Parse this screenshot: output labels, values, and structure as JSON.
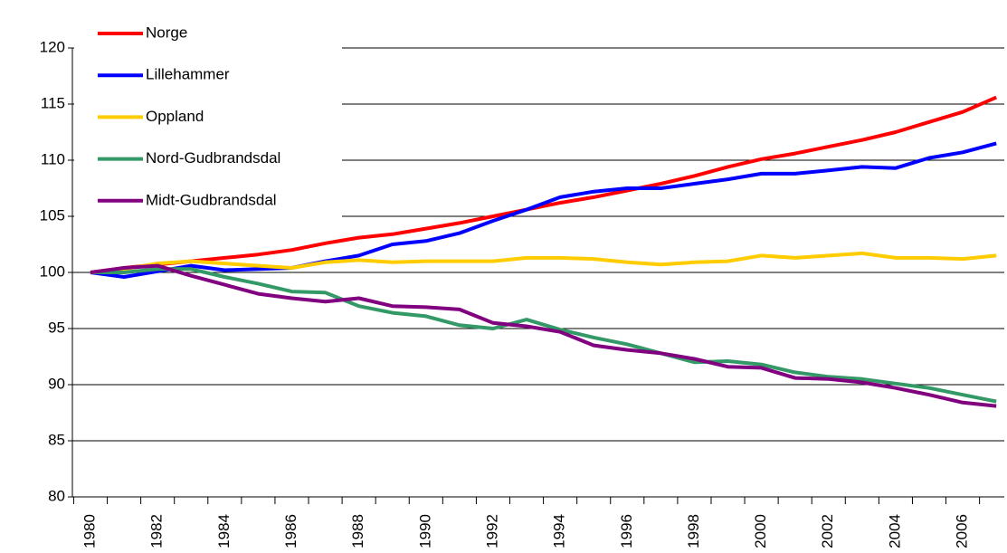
{
  "chart_data": {
    "type": "line",
    "categories": [
      "1980",
      null,
      "1982",
      null,
      "1984",
      null,
      "1986",
      null,
      "1988",
      null,
      "1990",
      null,
      "1992",
      null,
      "1994",
      null,
      "1996",
      null,
      "1998",
      null,
      "2000",
      null,
      "2002",
      null,
      "2004",
      null,
      "2006",
      null
    ],
    "ylim": [
      80,
      120
    ],
    "yticks": [
      80,
      85,
      90,
      95,
      100,
      105,
      110,
      115,
      120
    ],
    "grid": true,
    "legend": "upper left",
    "series": [
      {
        "name": "Norge",
        "color": "#ff0000",
        "values": [
          100,
          100.4,
          100.7,
          101.0,
          101.3,
          101.6,
          102.0,
          102.6,
          103.1,
          103.4,
          103.9,
          104.4,
          105.0,
          105.6,
          106.2,
          106.7,
          107.3,
          107.9,
          108.6,
          109.4,
          110.1,
          110.6,
          111.2,
          111.8,
          112.5,
          113.4,
          114.3,
          115.6
        ]
      },
      {
        "name": "Lillehammer",
        "color": "#0000ff",
        "values": [
          100,
          99.6,
          100.1,
          100.6,
          100.2,
          100.3,
          100.4,
          101.0,
          101.5,
          102.5,
          102.8,
          103.5,
          104.6,
          105.6,
          106.7,
          107.2,
          107.5,
          107.5,
          107.9,
          108.3,
          108.8,
          108.8,
          109.1,
          109.4,
          109.3,
          110.2,
          110.7,
          111.5
        ]
      },
      {
        "name": "Oppland",
        "color": "#ffcc00",
        "values": [
          100,
          100.3,
          100.8,
          101.0,
          100.8,
          100.6,
          100.4,
          100.9,
          101.1,
          100.9,
          101.0,
          101.0,
          101.0,
          101.3,
          101.3,
          101.2,
          100.9,
          100.7,
          100.9,
          101.0,
          101.5,
          101.3,
          101.5,
          101.7,
          101.3,
          101.3,
          101.2,
          101.5
        ]
      },
      {
        "name": "Nord-Gudbrandsdal",
        "color": "#339966",
        "values": [
          100,
          100.0,
          100.3,
          100.3,
          99.6,
          99.0,
          98.3,
          98.2,
          97.0,
          96.4,
          96.1,
          95.3,
          95.0,
          95.8,
          94.9,
          94.2,
          93.6,
          92.8,
          92.0,
          92.1,
          91.8,
          91.1,
          90.7,
          90.5,
          90.1,
          89.7,
          89.1,
          88.5
        ]
      },
      {
        "name": "Midt-Gudbrandsdal",
        "color": "#800080",
        "values": [
          100,
          100.4,
          100.6,
          99.7,
          98.9,
          98.1,
          97.7,
          97.4,
          97.7,
          97.0,
          96.9,
          96.7,
          95.5,
          95.2,
          94.7,
          93.5,
          93.1,
          92.8,
          92.3,
          91.6,
          91.5,
          90.6,
          90.5,
          90.2,
          89.7,
          89.1,
          88.4,
          88.1
        ]
      }
    ]
  }
}
